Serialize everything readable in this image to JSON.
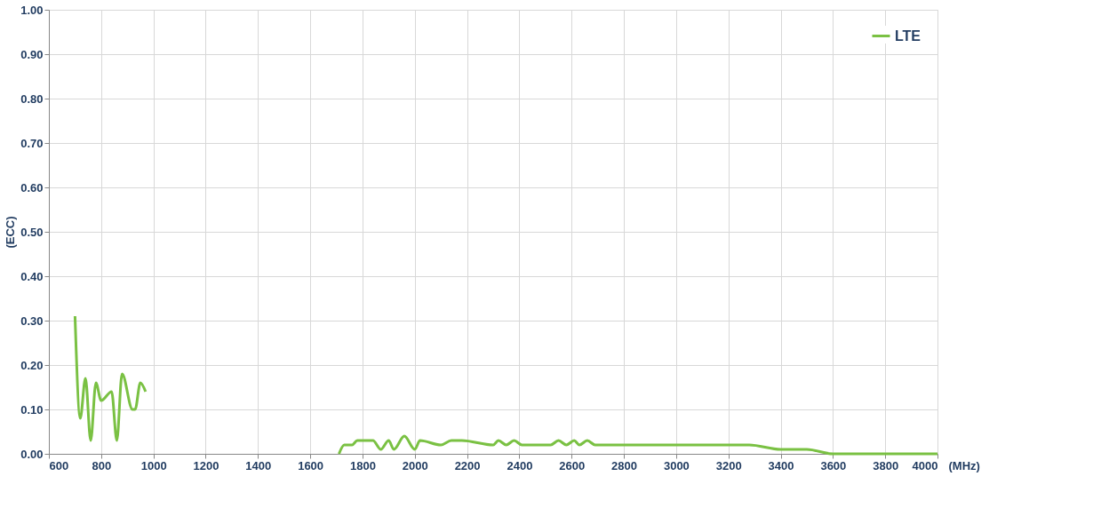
{
  "chart_data": {
    "type": "line",
    "xlabel": "(MHz)",
    "ylabel": "(ECC)",
    "x": [
      700,
      720,
      740,
      760,
      780,
      800,
      840,
      860,
      880,
      920,
      930,
      950,
      970,
      1340,
      1710,
      1730,
      1760,
      1780,
      1840,
      1870,
      1900,
      1920,
      1960,
      2000,
      2020,
      2100,
      2140,
      2180,
      2300,
      2320,
      2350,
      2380,
      2410,
      2520,
      2550,
      2580,
      2610,
      2630,
      2660,
      2690,
      3280,
      3400,
      3500,
      3600,
      4000
    ],
    "series": [
      {
        "name": "LTE",
        "color": "#7ac143",
        "values": [
          0.31,
          0.08,
          0.17,
          0.03,
          0.16,
          0.12,
          0.14,
          0.03,
          0.18,
          0.1,
          0.1,
          0.16,
          0.14,
          null,
          0,
          0.02,
          0.02,
          0.03,
          0.03,
          0.01,
          0.03,
          0.01,
          0.04,
          0.01,
          0.03,
          0.02,
          0.03,
          0.03,
          0.02,
          0.03,
          0.02,
          0.03,
          0.02,
          0.02,
          0.03,
          0.02,
          0.03,
          0.02,
          0.03,
          0.02,
          0.02,
          0.01,
          0.01,
          0,
          0
        ]
      }
    ],
    "xlim": [
      600,
      4000
    ],
    "xticks": [
      600,
      800,
      1000,
      1200,
      1400,
      1600,
      1800,
      2000,
      2200,
      2400,
      2600,
      2800,
      3000,
      3200,
      3400,
      3600,
      3800,
      4000
    ],
    "ylim": [
      0,
      1
    ],
    "yticks": [
      {
        "value": 0,
        "label": "0.00"
      },
      {
        "value": 0.1,
        "label": "0.10"
      },
      {
        "value": 0.2,
        "label": "0.20"
      },
      {
        "value": 0.3,
        "label": "0.30"
      },
      {
        "value": 0.4,
        "label": "0.40"
      },
      {
        "value": 0.5,
        "label": "0.50"
      },
      {
        "value": 0.6,
        "label": "0.60"
      },
      {
        "value": 0.7,
        "label": "0.70"
      },
      {
        "value": 0.8,
        "label": "0.80"
      },
      {
        "value": 0.9,
        "label": "0.90"
      },
      {
        "value": 1,
        "label": "1.00"
      }
    ],
    "grid": true,
    "legend": "top right",
    "marker": "none",
    "line_style": "solid"
  }
}
